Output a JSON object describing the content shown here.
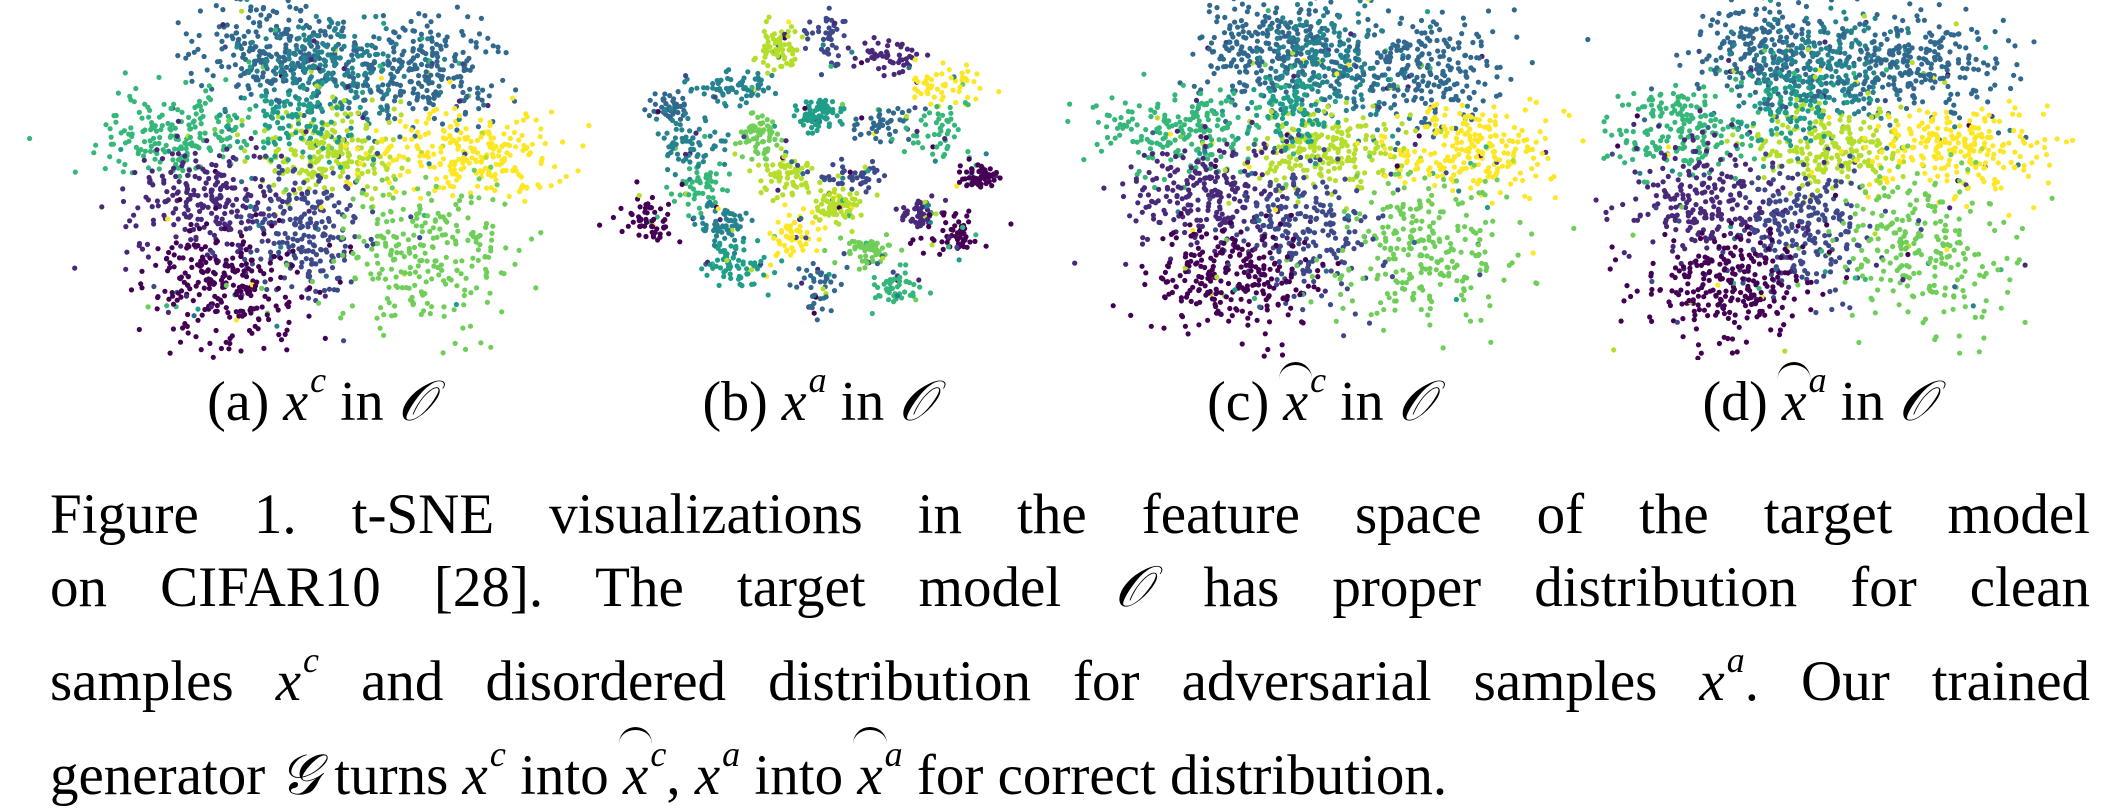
{
  "panels": [
    {
      "id": "a",
      "label": "(a)",
      "var": "x",
      "sup": "c",
      "hat": false,
      "in_text": "in",
      "model": "𝒪"
    },
    {
      "id": "b",
      "label": "(b)",
      "var": "x",
      "sup": "a",
      "hat": false,
      "in_text": "in",
      "model": "𝒪"
    },
    {
      "id": "c",
      "label": "(c)",
      "var": "x",
      "sup": "c",
      "hat": true,
      "in_text": "in",
      "model": "𝒪"
    },
    {
      "id": "d",
      "label": "(d)",
      "var": "x",
      "sup": "a",
      "hat": true,
      "in_text": "in",
      "model": "𝒪"
    }
  ],
  "palette": [
    "#440154",
    "#482878",
    "#3e4989",
    "#31688e",
    "#26828e",
    "#1f9e89",
    "#35b779",
    "#6ece58",
    "#b5de2b",
    "#fde725"
  ],
  "caption": {
    "line1": "Figure 1.  t-SNE visualizations in the feature space of the target model",
    "line2_a": "on CIFAR10 [28]. The target model",
    "line2_b": "has proper distribution for clean",
    "line3_a": "samples",
    "line3_b": "and disordered distribution for adversarial samples",
    "line3_c": ". Our trained",
    "line4_a": "generator",
    "line4_b": "turns",
    "line4_c": "into",
    "line4_d": ",",
    "line4_e": "into",
    "line4_f": "for correct distribution.",
    "sym_O": "𝒪",
    "sym_G": "𝒢",
    "sym_x": "x",
    "sup_c": "c",
    "sup_a": "a"
  }
}
